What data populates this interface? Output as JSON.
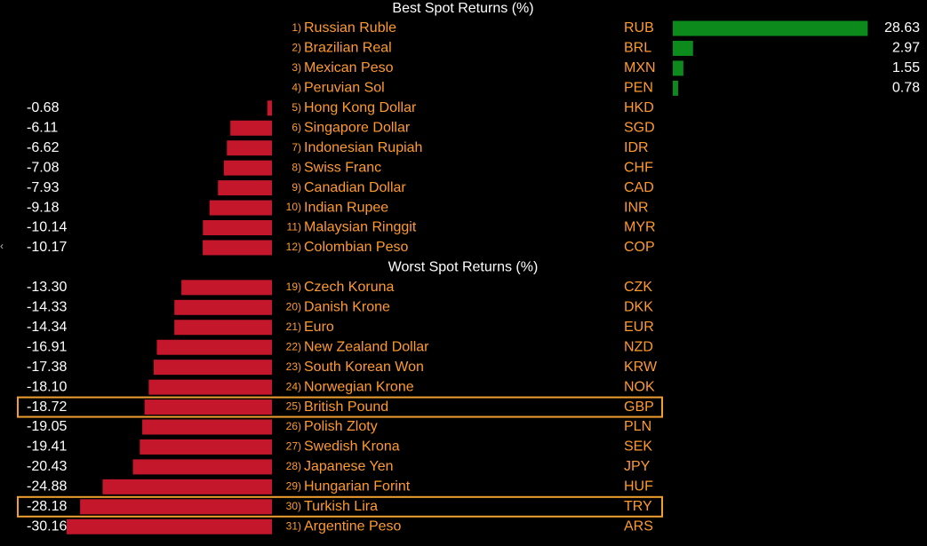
{
  "chart_data": {
    "type": "bar",
    "orientation": "horizontal",
    "sections": [
      {
        "title": "Best Spot Returns (%)",
        "rows": [
          {
            "rank": "1)",
            "name": "Russian Ruble",
            "code": "RUB",
            "value": 28.63,
            "label": "28.63"
          },
          {
            "rank": "2)",
            "name": "Brazilian Real",
            "code": "BRL",
            "value": 2.97,
            "label": "2.97"
          },
          {
            "rank": "3)",
            "name": "Mexican Peso",
            "code": "MXN",
            "value": 1.55,
            "label": "1.55"
          },
          {
            "rank": "4)",
            "name": "Peruvian Sol",
            "code": "PEN",
            "value": 0.78,
            "label": "0.78"
          },
          {
            "rank": "5)",
            "name": "Hong Kong Dollar",
            "code": "HKD",
            "value": -0.68,
            "label": "-0.68"
          },
          {
            "rank": "6)",
            "name": "Singapore Dollar",
            "code": "SGD",
            "value": -6.11,
            "label": "-6.11"
          },
          {
            "rank": "7)",
            "name": "Indonesian Rupiah",
            "code": "IDR",
            "value": -6.62,
            "label": "-6.62"
          },
          {
            "rank": "8)",
            "name": "Swiss Franc",
            "code": "CHF",
            "value": -7.08,
            "label": "-7.08"
          },
          {
            "rank": "9)",
            "name": "Canadian Dollar",
            "code": "CAD",
            "value": -7.93,
            "label": "-7.93"
          },
          {
            "rank": "10)",
            "name": "Indian Rupee",
            "code": "INR",
            "value": -9.18,
            "label": "-9.18"
          },
          {
            "rank": "11)",
            "name": "Malaysian Ringgit",
            "code": "MYR",
            "value": -10.14,
            "label": "-10.14"
          },
          {
            "rank": "12)",
            "name": "Colombian Peso",
            "code": "COP",
            "value": -10.17,
            "label": "-10.17"
          }
        ]
      },
      {
        "title": "Worst Spot Returns (%)",
        "rows": [
          {
            "rank": "19)",
            "name": "Czech Koruna",
            "code": "CZK",
            "value": -13.3,
            "label": "-13.30"
          },
          {
            "rank": "20)",
            "name": "Danish Krone",
            "code": "DKK",
            "value": -14.33,
            "label": "-14.33"
          },
          {
            "rank": "21)",
            "name": "Euro",
            "code": "EUR",
            "value": -14.34,
            "label": "-14.34"
          },
          {
            "rank": "22)",
            "name": "New Zealand Dollar",
            "code": "NZD",
            "value": -16.91,
            "label": "-16.91"
          },
          {
            "rank": "23)",
            "name": "South Korean Won",
            "code": "KRW",
            "value": -17.38,
            "label": "-17.38"
          },
          {
            "rank": "24)",
            "name": "Norwegian Krone",
            "code": "NOK",
            "value": -18.1,
            "label": "-18.10"
          },
          {
            "rank": "25)",
            "name": "British Pound",
            "code": "GBP",
            "value": -18.72,
            "label": "-18.72",
            "highlighted": true
          },
          {
            "rank": "26)",
            "name": "Polish Zloty",
            "code": "PLN",
            "value": -19.05,
            "label": "-19.05"
          },
          {
            "rank": "27)",
            "name": "Swedish Krona",
            "code": "SEK",
            "value": -19.41,
            "label": "-19.41"
          },
          {
            "rank": "28)",
            "name": "Japanese Yen",
            "code": "JPY",
            "value": -20.43,
            "label": "-20.43"
          },
          {
            "rank": "29)",
            "name": "Hungarian Forint",
            "code": "HUF",
            "value": -24.88,
            "label": "-24.88"
          },
          {
            "rank": "30)",
            "name": "Turkish Lira",
            "code": "TRY",
            "value": -28.18,
            "label": "-28.18",
            "highlighted": true
          },
          {
            "rank": "31)",
            "name": "Argentine Peso",
            "code": "ARS",
            "value": -30.16,
            "label": "-30.16"
          }
        ]
      }
    ],
    "positive_color": "#0c8a1c",
    "negative_color": "#c4172c",
    "label_color": "#ffffff",
    "name_color": "#ff9a2e",
    "highlight_color": "#f0a030"
  },
  "ui": {
    "edge_glyph": "‹"
  }
}
